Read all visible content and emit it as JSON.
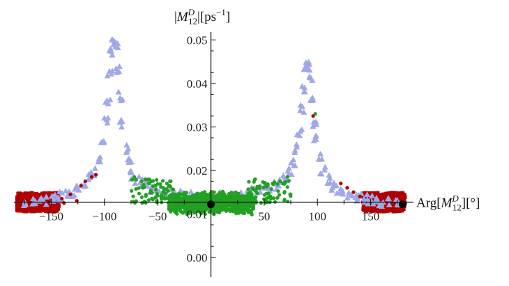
{
  "chart_data": {
    "type": "scatter",
    "title": "",
    "xlabel": "Arg[M12D][°]",
    "ylabel": "|M12D|[ps−1]",
    "xlabel_parts": {
      "pre": "Arg[",
      "base": "M",
      "sup": "D",
      "sub": "12",
      "post": "][°]"
    },
    "ylabel_parts": {
      "pre": "|",
      "base": "M",
      "sup": "D",
      "sub": "12",
      "post": "|[ps",
      "exp": "−1",
      "end": "]"
    },
    "xlim": [
      -185,
      185
    ],
    "ylim": [
      -0.0045,
      0.0515
    ],
    "x_axis_crosses_y": 0.0127,
    "y_axis_crosses_x": 0,
    "grid": false,
    "xticks": [
      -150,
      -100,
      -50,
      50,
      100,
      150
    ],
    "xtick_labels": [
      "−150",
      "−100",
      "−50",
      "50",
      "100",
      "150"
    ],
    "yticks": [
      0.0,
      0.01,
      0.02,
      0.03,
      0.04,
      0.05
    ],
    "ytick_labels": [
      "0.00",
      "0.01",
      "0.02",
      "0.03",
      "0.04",
      "0.05"
    ],
    "colors": {
      "red": "#b00000",
      "blue": "#a0a8e6",
      "green": "#22a022",
      "black": "#000000"
    },
    "series": [
      {
        "marker": "square",
        "color": "#b00000",
        "x": [
          -150,
          -185,
          185,
          150,
          -125,
          125
        ],
        "y": [
          0.0108,
          0.0108,
          0.0108,
          0.0108,
          0.0108,
          0.0108
        ],
        "points_cloud": [
          {
            "x_range": [
              -182,
              -143
            ],
            "y_range": [
              0.0106,
              0.0148
            ],
            "n": 420
          },
          {
            "x_range": [
              143,
              182
            ],
            "y_range": [
              0.0106,
              0.0148
            ],
            "n": 420
          }
        ]
      },
      {
        "marker": "triangle",
        "color": "#a0a8e6",
        "x": [
          -175,
          -165,
          -160,
          -155,
          -150,
          -145,
          -140,
          -135,
          -130,
          -125,
          -120,
          -115,
          -110,
          -105,
          -102,
          -99,
          -97,
          -95,
          -93,
          -91,
          -89,
          -87,
          -85,
          -83,
          -80,
          -77,
          -74,
          -70,
          -65,
          -60,
          -55,
          -50,
          -45,
          -40,
          -35,
          -30,
          -25,
          -20,
          -15,
          -10,
          10,
          15,
          20,
          25,
          30,
          35,
          40,
          45,
          50,
          55,
          60,
          65,
          70,
          74,
          77,
          80,
          83,
          85,
          87,
          89,
          91,
          93,
          95,
          97,
          99,
          102,
          105,
          110,
          115,
          120,
          125,
          130,
          135,
          140,
          145,
          150,
          155,
          160,
          165,
          175
        ],
        "y": [
          0.0125,
          0.0127,
          0.013,
          0.0132,
          0.0134,
          0.0138,
          0.014,
          0.0145,
          0.015,
          0.016,
          0.017,
          0.018,
          0.0195,
          0.022,
          0.026,
          0.031,
          0.036,
          0.042,
          0.047,
          0.05,
          0.049,
          0.043,
          0.037,
          0.031,
          0.025,
          0.022,
          0.019,
          0.0175,
          0.017,
          0.0165,
          0.016,
          0.0155,
          0.015,
          0.0148,
          0.0145,
          0.0143,
          0.0142,
          0.014,
          0.014,
          0.014,
          0.014,
          0.014,
          0.014,
          0.0142,
          0.0143,
          0.0145,
          0.0148,
          0.015,
          0.0155,
          0.016,
          0.0165,
          0.017,
          0.018,
          0.02,
          0.022,
          0.025,
          0.029,
          0.034,
          0.039,
          0.043,
          0.044,
          0.041,
          0.036,
          0.031,
          0.027,
          0.023,
          0.02,
          0.018,
          0.0165,
          0.0155,
          0.015,
          0.0145,
          0.014,
          0.0138,
          0.0135,
          0.0132,
          0.013,
          0.0128,
          0.0126,
          0.0125
        ]
      },
      {
        "marker": "circle",
        "color": "#22a022",
        "points_cloud": [
          {
            "x_range": [
              -40,
              40
            ],
            "y_range": [
              0.0098,
              0.0152
            ],
            "n": 900
          },
          {
            "x_range": [
              -75,
              -35
            ],
            "y_range": [
              0.0125,
              0.018
            ],
            "n": 70
          },
          {
            "x_range": [
              35,
              75
            ],
            "y_range": [
              0.0125,
              0.018
            ],
            "n": 70
          }
        ],
        "x": [
          -72,
          -65,
          -58,
          -52,
          -45,
          45,
          52,
          58,
          65,
          72,
          98
        ],
        "y": [
          0.0185,
          0.0175,
          0.017,
          0.0165,
          0.016,
          0.016,
          0.0165,
          0.017,
          0.0175,
          0.0185,
          0.033
        ]
      },
      {
        "marker": "circle",
        "color": "#b00000",
        "scattered": true,
        "x": [
          -140,
          -132,
          -126,
          -122,
          -118,
          -112,
          -108,
          122,
          128,
          134,
          140,
          96,
          -138
        ],
        "y": [
          0.0135,
          0.0145,
          0.013,
          0.0165,
          0.0175,
          0.0185,
          0.019,
          0.017,
          0.016,
          0.015,
          0.014,
          0.0325,
          0.0125
        ]
      },
      {
        "marker": "large-circle",
        "color": "#000000",
        "x": [
          0,
          180
        ],
        "y": [
          0.0122,
          0.0122
        ]
      }
    ]
  }
}
